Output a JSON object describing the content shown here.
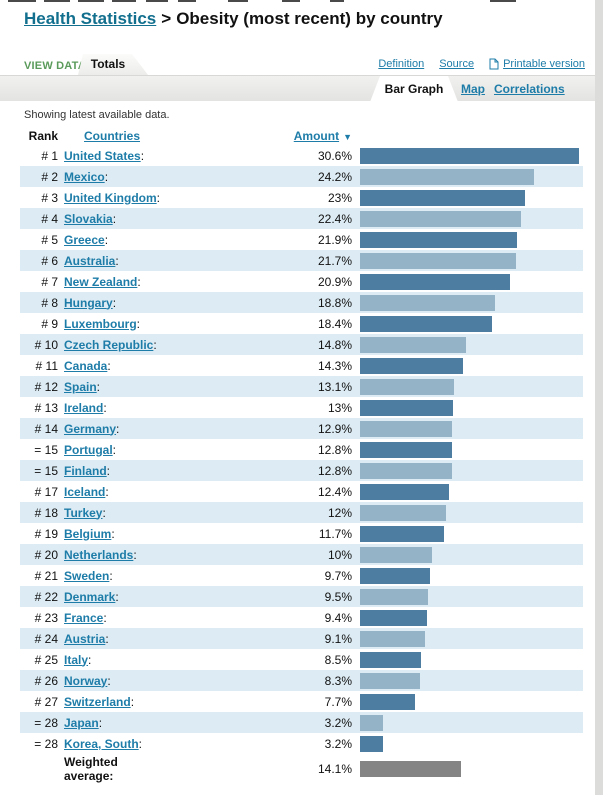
{
  "header": {
    "breadcrumb_link": "Health Statistics",
    "separator": ">",
    "title": "Obesity (most recent) by country"
  },
  "toolbar": {
    "view_data_label": "VIEW DATA:",
    "active_tab": "Totals",
    "links": {
      "definition": "Definition",
      "source": "Source",
      "printable": "Printable version"
    }
  },
  "view_tabs": {
    "active": "Bar Graph",
    "map": "Map",
    "correlations": "Correlations"
  },
  "note": "Showing latest available data.",
  "table": {
    "headers": {
      "rank": "Rank",
      "countries": "Countries",
      "amount": "Amount"
    },
    "sort_icon": "▼",
    "rows": [
      {
        "rank": "# 1",
        "country": "United States",
        "amount": "30.6%",
        "pct": 30.6
      },
      {
        "rank": "# 2",
        "country": "Mexico",
        "amount": "24.2%",
        "pct": 24.2
      },
      {
        "rank": "# 3",
        "country": "United Kingdom",
        "amount": "23%",
        "pct": 23
      },
      {
        "rank": "# 4",
        "country": "Slovakia",
        "amount": "22.4%",
        "pct": 22.4
      },
      {
        "rank": "# 5",
        "country": "Greece",
        "amount": "21.9%",
        "pct": 21.9
      },
      {
        "rank": "# 6",
        "country": "Australia",
        "amount": "21.7%",
        "pct": 21.7
      },
      {
        "rank": "# 7",
        "country": "New Zealand",
        "amount": "20.9%",
        "pct": 20.9
      },
      {
        "rank": "# 8",
        "country": "Hungary",
        "amount": "18.8%",
        "pct": 18.8
      },
      {
        "rank": "# 9",
        "country": "Luxembourg",
        "amount": "18.4%",
        "pct": 18.4
      },
      {
        "rank": "# 10",
        "country": "Czech Republic",
        "amount": "14.8%",
        "pct": 14.8
      },
      {
        "rank": "# 11",
        "country": "Canada",
        "amount": "14.3%",
        "pct": 14.3
      },
      {
        "rank": "# 12",
        "country": "Spain",
        "amount": "13.1%",
        "pct": 13.1
      },
      {
        "rank": "# 13",
        "country": "Ireland",
        "amount": "13%",
        "pct": 13
      },
      {
        "rank": "# 14",
        "country": "Germany",
        "amount": "12.9%",
        "pct": 12.9
      },
      {
        "rank": "= 15",
        "country": "Portugal",
        "amount": "12.8%",
        "pct": 12.8
      },
      {
        "rank": "= 15",
        "country": "Finland",
        "amount": "12.8%",
        "pct": 12.8
      },
      {
        "rank": "# 17",
        "country": "Iceland",
        "amount": "12.4%",
        "pct": 12.4
      },
      {
        "rank": "# 18",
        "country": "Turkey",
        "amount": "12%",
        "pct": 12
      },
      {
        "rank": "# 19",
        "country": "Belgium",
        "amount": "11.7%",
        "pct": 11.7
      },
      {
        "rank": "# 20",
        "country": "Netherlands",
        "amount": "10%",
        "pct": 10
      },
      {
        "rank": "# 21",
        "country": "Sweden",
        "amount": "9.7%",
        "pct": 9.7
      },
      {
        "rank": "# 22",
        "country": "Denmark",
        "amount": "9.5%",
        "pct": 9.5
      },
      {
        "rank": "# 23",
        "country": "France",
        "amount": "9.4%",
        "pct": 9.4
      },
      {
        "rank": "# 24",
        "country": "Austria",
        "amount": "9.1%",
        "pct": 9.1
      },
      {
        "rank": "# 25",
        "country": "Italy",
        "amount": "8.5%",
        "pct": 8.5
      },
      {
        "rank": "# 26",
        "country": "Norway",
        "amount": "8.3%",
        "pct": 8.3
      },
      {
        "rank": "# 27",
        "country": "Switzerland",
        "amount": "7.7%",
        "pct": 7.7
      },
      {
        "rank": "= 28",
        "country": "Japan",
        "amount": "3.2%",
        "pct": 3.2
      },
      {
        "rank": "= 28",
        "country": "Korea, South",
        "amount": "3.2%",
        "pct": 3.2
      }
    ],
    "weighted": {
      "label_line1": "Weighted",
      "label_line2": "average:",
      "amount": "14.1%",
      "pct": 14.1
    }
  },
  "chart_data": {
    "type": "bar",
    "title": "Obesity (most recent) by country",
    "categories": [
      "United States",
      "Mexico",
      "United Kingdom",
      "Slovakia",
      "Greece",
      "Australia",
      "New Zealand",
      "Hungary",
      "Luxembourg",
      "Czech Republic",
      "Canada",
      "Spain",
      "Ireland",
      "Germany",
      "Portugal",
      "Finland",
      "Iceland",
      "Turkey",
      "Belgium",
      "Netherlands",
      "Sweden",
      "Denmark",
      "France",
      "Austria",
      "Italy",
      "Norway",
      "Switzerland",
      "Japan",
      "Korea, South"
    ],
    "values": [
      30.6,
      24.2,
      23,
      22.4,
      21.9,
      21.7,
      20.9,
      18.8,
      18.4,
      14.8,
      14.3,
      13.1,
      13,
      12.9,
      12.8,
      12.8,
      12.4,
      12,
      11.7,
      10,
      9.7,
      9.5,
      9.4,
      9.1,
      8.5,
      8.3,
      7.7,
      3.2,
      3.2
    ],
    "weighted_average": 14.1,
    "unit": "%",
    "xlabel": "Amount",
    "xlim": [
      0,
      31
    ],
    "orientation": "horizontal",
    "grid": false
  },
  "colors": {
    "link": "#1e7ca8",
    "title_link": "#126f8e",
    "green": "#5a9a5a",
    "bar_dark": "#4d7ea1",
    "bar_light": "#95b3c7",
    "bar_avg": "#848484",
    "stripe": "#ddecf4"
  }
}
